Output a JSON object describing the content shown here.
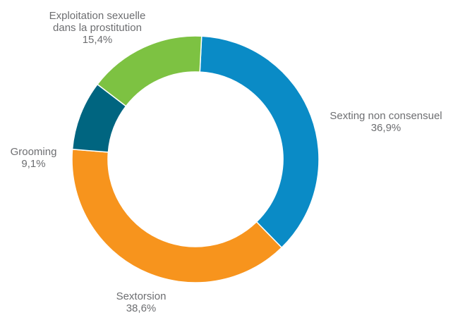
{
  "chart_data": {
    "type": "pie",
    "style": "donut",
    "slices": [
      {
        "name": "Sexting non consensuel",
        "value": 36.9,
        "value_label": "36,9%",
        "color": "#0a8bc6"
      },
      {
        "name": "Sextorsion",
        "value": 38.6,
        "value_label": "38,6%",
        "color": "#f7941d"
      },
      {
        "name": "Grooming",
        "value": 9.1,
        "value_label": "9,1%",
        "color": "#006580"
      },
      {
        "name_lines": [
          "Exploitation sexuelle",
          "dans la prostitution"
        ],
        "name": "Exploitation sexuelle dans la prostitution",
        "value": 15.4,
        "value_label": "15,4%",
        "color": "#7dc242"
      }
    ]
  }
}
